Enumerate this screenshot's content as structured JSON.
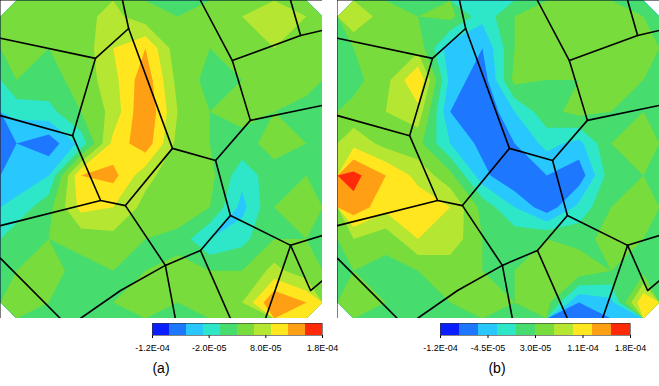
{
  "chart_data": [
    {
      "type": "contour",
      "title": "(a)",
      "tick_labels": false,
      "colorbar_range": [
        -0.00012,
        0.00018
      ],
      "colorbar_ticks": [
        {
          "value": -0.00012,
          "label": "-1.2E-04"
        },
        {
          "value": -2e-05,
          "label": "-2.0E-05"
        },
        {
          "value": 8e-05,
          "label": "8.0E-05"
        },
        {
          "value": 0.00018,
          "label": "1.8E-04"
        }
      ],
      "cells": [
        [
          6e-05,
          4e-05,
          5e-05,
          7e-05,
          4e-05,
          3e-05,
          5e-05,
          6e-05,
          8e-05,
          6e-05
        ],
        [
          5e-05,
          3e-05,
          4e-05,
          9e-05,
          0.00012,
          4e-05,
          3e-05,
          5e-05,
          6e-05,
          5e-05
        ],
        [
          3e-05,
          2e-05,
          4e-05,
          8e-05,
          0.00014,
          5e-05,
          2e-05,
          3e-05,
          4e-05,
          4e-05
        ],
        [
          -2e-05,
          -1e-05,
          3e-05,
          7e-05,
          0.00015,
          6e-05,
          3e-05,
          4e-05,
          3e-05,
          2e-05
        ],
        [
          -6e-05,
          -8e-05,
          -2e-05,
          0.0001,
          0.00014,
          5e-05,
          3e-05,
          2e-05,
          4e-05,
          3e-05
        ],
        [
          -5e-05,
          -3e-05,
          0.00012,
          0.00013,
          7e-05,
          4e-05,
          4e-05,
          -2e-05,
          2e-05,
          3e-05
        ],
        [
          -2e-05,
          2e-05,
          0.0001,
          9e-05,
          5e-05,
          5e-05,
          3e-05,
          -4e-05,
          3e-05,
          4e-05
        ],
        [
          2e-05,
          3e-05,
          4e-05,
          5e-05,
          3e-05,
          2e-05,
          -3e-05,
          -1e-05,
          3e-05,
          3e-05
        ],
        [
          3e-05,
          4e-05,
          2e-05,
          3e-05,
          3e-05,
          4e-05,
          3e-05,
          3e-05,
          7e-05,
          4e-05
        ],
        [
          4e-05,
          3e-05,
          3e-05,
          3e-05,
          5e-05,
          3e-05,
          4e-05,
          6e-05,
          0.00015,
          0.00012
        ]
      ],
      "grain_boundaries": [
        [
          [
            3.79,
            0
          ],
          [
            3.98,
            0.88
          ],
          [
            5.34,
            4.65
          ],
          [
            6.68,
            5.03
          ],
          [
            7.76,
            3.77
          ],
          [
            10,
            3.3
          ]
        ],
        [
          [
            0,
            1.19
          ],
          [
            2.95,
            1.82
          ],
          [
            3.98,
            0.88
          ]
        ],
        [
          [
            2.95,
            1.82
          ],
          [
            2.24,
            4.25
          ],
          [
            3.11,
            6.29
          ],
          [
            3.88,
            6.45
          ],
          [
            5.34,
            4.65
          ]
        ],
        [
          [
            0,
            3.62
          ],
          [
            2.24,
            4.25
          ]
        ],
        [
          [
            6.21,
            0
          ],
          [
            7.2,
            1.89
          ],
          [
            7.76,
            3.77
          ]
        ],
        [
          [
            7.2,
            1.89
          ],
          [
            9.32,
            1.1
          ],
          [
            10,
            0.94
          ]
        ],
        [
          [
            9.32,
            1.1
          ],
          [
            9.01,
            0
          ]
        ],
        [
          [
            6.68,
            5.03
          ],
          [
            7.14,
            6.76
          ],
          [
            9.01,
            7.7
          ],
          [
            10,
            7.39
          ]
        ],
        [
          [
            7.14,
            6.76
          ],
          [
            6.21,
            7.86
          ],
          [
            5.12,
            8.33
          ],
          [
            3.88,
            6.45
          ]
        ],
        [
          [
            5.12,
            8.33
          ],
          [
            5.43,
            10
          ]
        ],
        [
          [
            0,
            7.08
          ],
          [
            3.11,
            6.29
          ]
        ],
        [
          [
            5.12,
            8.33
          ],
          [
            3.73,
            9.12
          ],
          [
            2.48,
            10
          ]
        ],
        [
          [
            0,
            8.11
          ],
          [
            1.86,
            10
          ]
        ],
        [
          [
            9.01,
            7.7
          ],
          [
            8.23,
            10
          ]
        ],
        [
          [
            9.01,
            7.7
          ],
          [
            9.63,
            9.12
          ],
          [
            10,
            8.81
          ]
        ],
        [
          [
            6.21,
            7.86
          ],
          [
            7.14,
            10
          ]
        ]
      ]
    },
    {
      "type": "contour",
      "title": "(b)",
      "tick_labels": false,
      "colorbar_range": [
        -0.00012,
        0.00018
      ],
      "colorbar_ticks": [
        {
          "value": -0.00012,
          "label": "-1.2E-04"
        },
        {
          "value": -4.5e-05,
          "label": "-4.5E-05"
        },
        {
          "value": 3e-05,
          "label": "3.0E-05"
        },
        {
          "value": 0.000105,
          "label": "1.1E-04"
        },
        {
          "value": 0.00018,
          "label": "1.8E-04"
        }
      ],
      "cells": [
        [
          9e-05,
          4e-05,
          3e-05,
          4e-05,
          -2e-05,
          3e-05,
          4e-05,
          5e-05,
          4e-05,
          3e-05
        ],
        [
          3e-05,
          4e-05,
          5e-05,
          -5e-05,
          -6e-05,
          3e-05,
          4e-05,
          6e-05,
          5e-05,
          4e-05
        ],
        [
          2e-05,
          5e-05,
          0.00012,
          -4e-05,
          -8e-05,
          4e-05,
          3e-05,
          3e-05,
          4e-05,
          3e-05
        ],
        [
          4e-05,
          6e-05,
          8e-05,
          -6e-05,
          -9e-05,
          -3e-05,
          2e-05,
          4e-05,
          3e-05,
          3e-05
        ],
        [
          8e-05,
          5e-05,
          4e-05,
          -3e-05,
          -7e-05,
          -6e-05,
          -2e-05,
          -4e-05,
          3e-05,
          4e-05
        ],
        [
          0.00016,
          0.00012,
          8e-05,
          4e-05,
          -5e-05,
          -9e-05,
          -6e-05,
          -8e-05,
          2e-05,
          3e-05
        ],
        [
          0.00014,
          0.0001,
          0.00011,
          9e-05,
          2e-05,
          -3e-05,
          -8e-05,
          -2e-05,
          3e-05,
          4e-05
        ],
        [
          6e-05,
          4e-05,
          9e-05,
          8e-05,
          3e-05,
          2e-05,
          3e-05,
          2e-05,
          4e-05,
          3e-05
        ],
        [
          3e-05,
          2e-05,
          3e-05,
          4e-05,
          3e-05,
          3e-05,
          4e-05,
          5e-05,
          3e-05,
          2e-05
        ],
        [
          4e-05,
          3e-05,
          3e-05,
          3e-05,
          4e-05,
          3e-05,
          4e-05,
          -6e-05,
          -4e-05,
          0.00012
        ]
      ],
      "grain_boundaries": [
        [
          [
            3.79,
            0
          ],
          [
            3.98,
            0.88
          ],
          [
            5.34,
            4.65
          ],
          [
            6.68,
            5.03
          ],
          [
            7.76,
            3.77
          ],
          [
            10,
            3.3
          ]
        ],
        [
          [
            0,
            1.19
          ],
          [
            2.95,
            1.82
          ],
          [
            3.98,
            0.88
          ]
        ],
        [
          [
            2.95,
            1.82
          ],
          [
            2.24,
            4.25
          ],
          [
            3.11,
            6.29
          ],
          [
            3.88,
            6.45
          ],
          [
            5.34,
            4.65
          ]
        ],
        [
          [
            0,
            3.62
          ],
          [
            2.24,
            4.25
          ]
        ],
        [
          [
            6.21,
            0
          ],
          [
            7.2,
            1.89
          ],
          [
            7.76,
            3.77
          ]
        ],
        [
          [
            7.2,
            1.89
          ],
          [
            9.32,
            1.1
          ],
          [
            10,
            0.94
          ]
        ],
        [
          [
            9.32,
            1.1
          ],
          [
            9.01,
            0
          ]
        ],
        [
          [
            6.68,
            5.03
          ],
          [
            7.14,
            6.76
          ],
          [
            9.01,
            7.7
          ],
          [
            10,
            7.39
          ]
        ],
        [
          [
            7.14,
            6.76
          ],
          [
            6.21,
            7.86
          ],
          [
            5.12,
            8.33
          ],
          [
            3.88,
            6.45
          ]
        ],
        [
          [
            5.12,
            8.33
          ],
          [
            5.43,
            10
          ]
        ],
        [
          [
            0,
            7.08
          ],
          [
            3.11,
            6.29
          ]
        ],
        [
          [
            5.12,
            8.33
          ],
          [
            3.73,
            9.12
          ],
          [
            2.48,
            10
          ]
        ],
        [
          [
            0,
            8.11
          ],
          [
            1.86,
            10
          ]
        ],
        [
          [
            9.01,
            7.7
          ],
          [
            8.23,
            10
          ]
        ],
        [
          [
            9.01,
            7.7
          ],
          [
            9.63,
            9.12
          ],
          [
            10,
            8.81
          ]
        ],
        [
          [
            6.21,
            7.86
          ],
          [
            7.14,
            10
          ]
        ]
      ]
    }
  ]
}
